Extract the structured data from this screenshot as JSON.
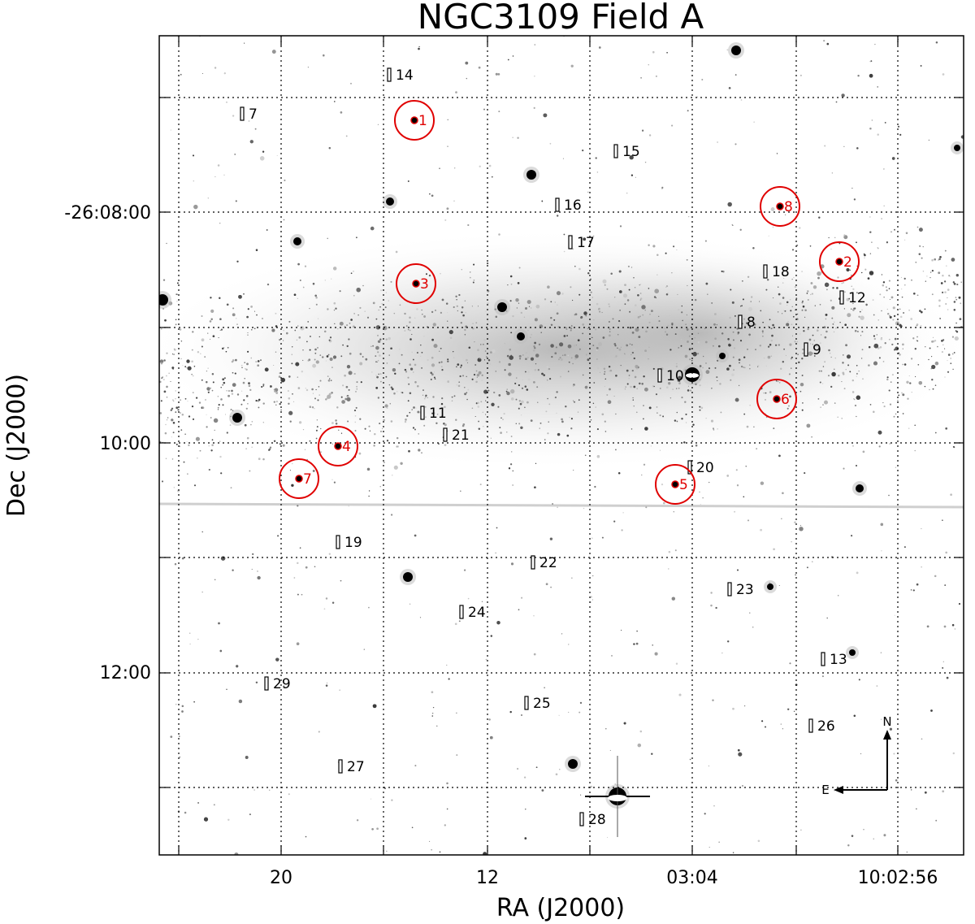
{
  "figure": {
    "title": "NGC3109 Field A",
    "xlabel": "RA (J2000)",
    "ylabel": "Dec (J2000)",
    "xticks": [
      "20",
      "12",
      "03:04",
      "10:02:56"
    ],
    "yticks": [
      "-26:08:00",
      "10:00",
      "12:00"
    ],
    "grid": true,
    "compass": {
      "north": "N",
      "east": "E"
    },
    "colors": {
      "circles": "#e00000",
      "markers": "#000000",
      "grid": "#000000",
      "sky": "#ffffff"
    }
  },
  "circled_targets": [
    "1",
    "2",
    "3",
    "4",
    "5",
    "6",
    "7",
    "8"
  ],
  "slit_labels": [
    "7",
    "14",
    "15",
    "16",
    "17",
    "18",
    "12",
    "8",
    "9",
    "10",
    "11",
    "21",
    "20",
    "19",
    "22",
    "23",
    "24",
    "13",
    "29",
    "25",
    "26",
    "27",
    "28"
  ]
}
